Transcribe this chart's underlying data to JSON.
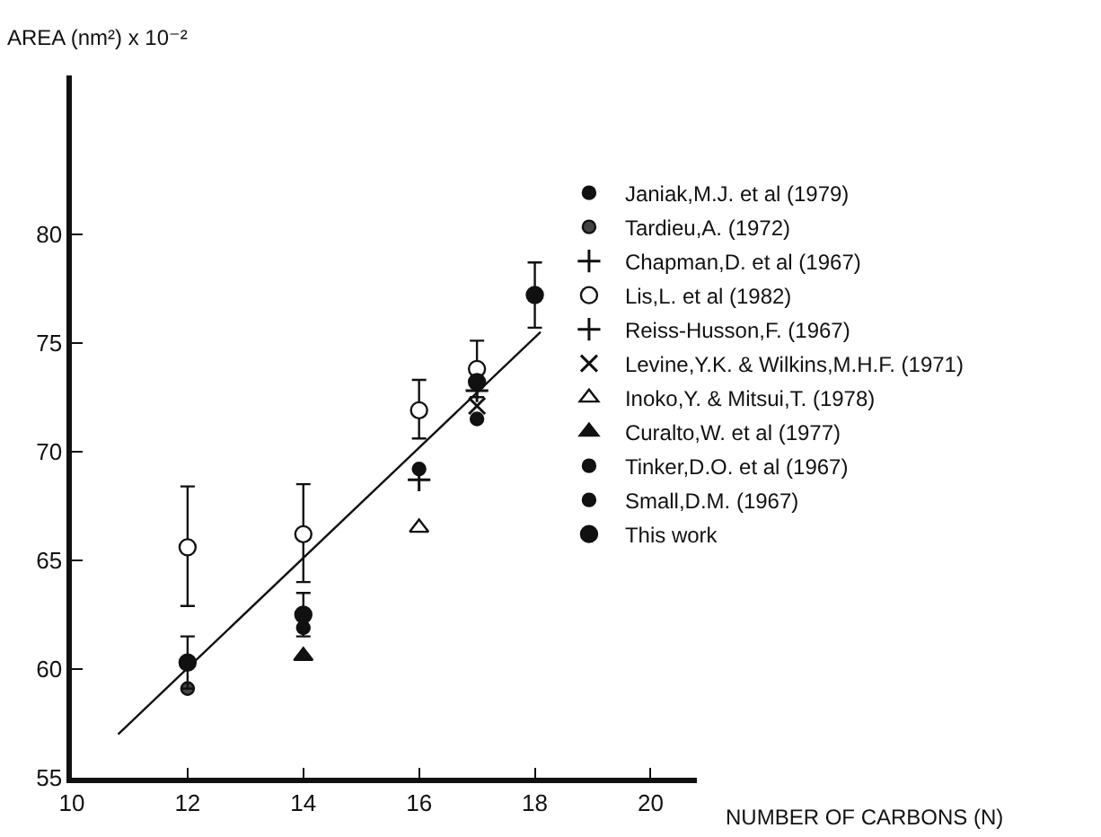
{
  "chart_data": {
    "type": "scatter",
    "xlabel": "NUMBER OF CARBONS (N)",
    "ylabel": "AREA (nm²) x 10⁻²",
    "xlim": [
      10,
      20.8
    ],
    "xticks": [
      10,
      12,
      14,
      16,
      18,
      20
    ],
    "ylim": [
      55,
      87.3
    ],
    "yticks": [
      55,
      60,
      65,
      70,
      75,
      80
    ],
    "grid": false,
    "legend": "right",
    "series": [
      {
        "name": "Janiak,M.J. et al (1979)",
        "color": "#111111",
        "marker": "circle",
        "x": [
          16
        ],
        "values": [
          69.2
        ]
      },
      {
        "name": "Tardieu,A. (1972)",
        "color": "#444444",
        "marker": "circle",
        "x": [
          12
        ],
        "values": [
          59.1
        ]
      },
      {
        "name": "Chapman,D. et al (1967)",
        "color": "#111111",
        "marker": "cross",
        "x": [
          16
        ],
        "values": [
          68.7
        ]
      },
      {
        "name": "Lis,L. et al (1982)",
        "color": "#ffffff",
        "marker": "circle",
        "x": [
          12,
          14,
          16,
          17
        ],
        "values": [
          65.6,
          66.2,
          71.9,
          73.8
        ],
        "errors": [
          [
            62.9,
            68.4
          ],
          [
            64.0,
            68.5
          ],
          [
            70.6,
            73.3
          ],
          [
            72.5,
            75.1
          ]
        ]
      },
      {
        "name": "Reiss-Husson,F. (1967)",
        "color": "#111111",
        "marker": "cross",
        "x": [
          17
        ],
        "values": [
          72.8
        ]
      },
      {
        "name": "Levine,Y.K. & Wilkins,M.H.F. (1971)",
        "color": "#111111",
        "marker": "x",
        "x": [
          17
        ],
        "values": [
          72.1
        ]
      },
      {
        "name": "Inoko,Y. & Mitsui,T. (1978)",
        "color": "#ffffff",
        "marker": "triangle",
        "x": [
          16
        ],
        "values": [
          66.5
        ]
      },
      {
        "name": "Curalto,W. et al (1977)",
        "color": "#111111",
        "marker": "triangle",
        "x": [
          14
        ],
        "values": [
          60.6
        ]
      },
      {
        "name": "Tinker,D.O. et al (1967)",
        "color": "#111111",
        "marker": "circle",
        "x": [
          14
        ],
        "values": [
          61.9
        ]
      },
      {
        "name": "Small,D.M. (1967)",
        "color": "#111111",
        "marker": "circle",
        "x": [
          17
        ],
        "values": [
          71.5
        ]
      },
      {
        "name": "This work",
        "color": "#111111",
        "marker": "circle",
        "x": [
          12,
          14,
          17,
          18
        ],
        "values": [
          60.3,
          62.5,
          73.2,
          77.2
        ],
        "errors": [
          1.2,
          1.0,
          null,
          [
            75.7,
            78.7
          ]
        ]
      },
      {
        "type": "line",
        "color": "#111111",
        "line_style": "solid",
        "x": [
          10.8,
          18.1
        ],
        "values": [
          57.0,
          75.5
        ]
      }
    ]
  }
}
